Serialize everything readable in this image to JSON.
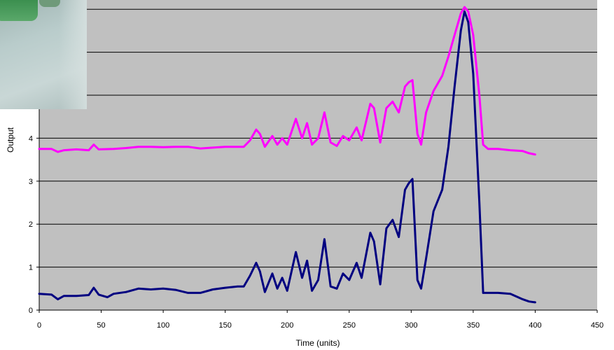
{
  "chart_data": {
    "type": "line",
    "title": "",
    "xlabel": "Time (units)",
    "ylabel": "Output",
    "xlim": [
      0,
      450
    ],
    "ylim": [
      0,
      7
    ],
    "x_ticks": [
      "0",
      "50",
      "100",
      "150",
      "200",
      "250",
      "300",
      "350",
      "400",
      "450"
    ],
    "y_ticks": [
      "0",
      "1",
      "2",
      "3",
      "4"
    ],
    "grid": "horizontal",
    "legend": "none",
    "colors": {
      "plot_bg": "#c0c0c0",
      "grid": "#000000"
    },
    "series": [
      {
        "color": "#ff00ff",
        "points": [
          [
            0,
            3.75
          ],
          [
            10,
            3.75
          ],
          [
            15,
            3.68
          ],
          [
            20,
            3.72
          ],
          [
            30,
            3.74
          ],
          [
            40,
            3.72
          ],
          [
            44,
            3.85
          ],
          [
            48,
            3.74
          ],
          [
            60,
            3.75
          ],
          [
            70,
            3.77
          ],
          [
            80,
            3.8
          ],
          [
            90,
            3.8
          ],
          [
            100,
            3.79
          ],
          [
            110,
            3.8
          ],
          [
            120,
            3.8
          ],
          [
            130,
            3.76
          ],
          [
            140,
            3.78
          ],
          [
            150,
            3.8
          ],
          [
            160,
            3.8
          ],
          [
            165,
            3.8
          ],
          [
            170,
            3.95
          ],
          [
            175,
            4.2
          ],
          [
            178,
            4.1
          ],
          [
            182,
            3.8
          ],
          [
            188,
            4.05
          ],
          [
            192,
            3.85
          ],
          [
            196,
            4.0
          ],
          [
            200,
            3.85
          ],
          [
            207,
            4.45
          ],
          [
            212,
            4.0
          ],
          [
            216,
            4.35
          ],
          [
            220,
            3.85
          ],
          [
            225,
            4.0
          ],
          [
            230,
            4.6
          ],
          [
            235,
            3.9
          ],
          [
            240,
            3.82
          ],
          [
            245,
            4.05
          ],
          [
            250,
            3.95
          ],
          [
            256,
            4.25
          ],
          [
            260,
            3.95
          ],
          [
            267,
            4.8
          ],
          [
            270,
            4.7
          ],
          [
            275,
            3.9
          ],
          [
            280,
            4.7
          ],
          [
            285,
            4.85
          ],
          [
            290,
            4.6
          ],
          [
            295,
            5.2
          ],
          [
            298,
            5.3
          ],
          [
            301,
            5.35
          ],
          [
            305,
            4.1
          ],
          [
            308,
            3.85
          ],
          [
            312,
            4.6
          ],
          [
            318,
            5.1
          ],
          [
            325,
            5.45
          ],
          [
            330,
            5.9
          ],
          [
            335,
            6.4
          ],
          [
            340,
            6.9
          ],
          [
            343,
            7.05
          ],
          [
            346,
            6.95
          ],
          [
            350,
            6.4
          ],
          [
            355,
            5.0
          ],
          [
            358,
            3.85
          ],
          [
            362,
            3.75
          ],
          [
            370,
            3.75
          ],
          [
            380,
            3.72
          ],
          [
            390,
            3.7
          ],
          [
            395,
            3.65
          ],
          [
            400,
            3.62
          ]
        ]
      },
      {
        "color": "#000080",
        "points": [
          [
            0,
            0.38
          ],
          [
            10,
            0.36
          ],
          [
            15,
            0.25
          ],
          [
            20,
            0.33
          ],
          [
            30,
            0.33
          ],
          [
            40,
            0.35
          ],
          [
            44,
            0.52
          ],
          [
            48,
            0.36
          ],
          [
            55,
            0.3
          ],
          [
            60,
            0.38
          ],
          [
            70,
            0.42
          ],
          [
            80,
            0.5
          ],
          [
            90,
            0.48
          ],
          [
            100,
            0.5
          ],
          [
            110,
            0.47
          ],
          [
            120,
            0.4
          ],
          [
            130,
            0.4
          ],
          [
            140,
            0.48
          ],
          [
            150,
            0.52
          ],
          [
            160,
            0.55
          ],
          [
            165,
            0.55
          ],
          [
            170,
            0.8
          ],
          [
            175,
            1.1
          ],
          [
            178,
            0.9
          ],
          [
            182,
            0.42
          ],
          [
            188,
            0.85
          ],
          [
            192,
            0.5
          ],
          [
            196,
            0.75
          ],
          [
            200,
            0.45
          ],
          [
            207,
            1.35
          ],
          [
            212,
            0.75
          ],
          [
            216,
            1.15
          ],
          [
            220,
            0.45
          ],
          [
            225,
            0.7
          ],
          [
            230,
            1.65
          ],
          [
            235,
            0.55
          ],
          [
            240,
            0.5
          ],
          [
            245,
            0.85
          ],
          [
            250,
            0.7
          ],
          [
            256,
            1.1
          ],
          [
            260,
            0.75
          ],
          [
            267,
            1.8
          ],
          [
            270,
            1.6
          ],
          [
            275,
            0.6
          ],
          [
            280,
            1.9
          ],
          [
            285,
            2.1
          ],
          [
            290,
            1.7
          ],
          [
            295,
            2.8
          ],
          [
            298,
            2.95
          ],
          [
            301,
            3.05
          ],
          [
            305,
            0.7
          ],
          [
            308,
            0.5
          ],
          [
            312,
            1.2
          ],
          [
            318,
            2.3
          ],
          [
            325,
            2.8
          ],
          [
            330,
            3.8
          ],
          [
            335,
            5.2
          ],
          [
            340,
            6.5
          ],
          [
            343,
            6.95
          ],
          [
            346,
            6.7
          ],
          [
            350,
            5.5
          ],
          [
            355,
            2.5
          ],
          [
            358,
            0.4
          ],
          [
            362,
            0.4
          ],
          [
            370,
            0.4
          ],
          [
            380,
            0.38
          ],
          [
            390,
            0.25
          ],
          [
            395,
            0.2
          ],
          [
            400,
            0.18
          ]
        ]
      }
    ]
  }
}
